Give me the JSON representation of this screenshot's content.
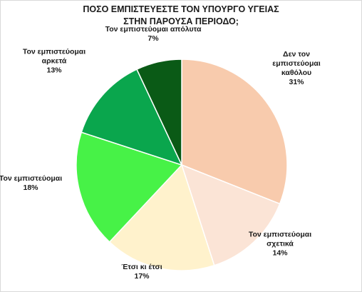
{
  "chart_data": {
    "type": "pie",
    "title_line1": "ΠΟΣΟ ΕΜΠΙΣΤΕΥΕΣΤΕ ΤΟΝ ΥΠΟΥΡΓΟ ΥΓΕΙΑΣ",
    "title_line2": "ΣΤΗΝ ΠΑΡΟΥΣΑ ΠΕΡΙΟΔΟ;",
    "slices": [
      {
        "label": "Δεν τον\nεμπιστεύομαι\nκαθόλου",
        "value": 31,
        "pct_label": "31%",
        "color": "#f8cbad"
      },
      {
        "label": "Τον εμπιστεύομαι\nσχετικά",
        "value": 14,
        "pct_label": "14%",
        "color": "#fbe4d6"
      },
      {
        "label": "Έτσι κι έτσι",
        "value": 17,
        "pct_label": "17%",
        "color": "#fff2cc"
      },
      {
        "label": "Τον εμπιστεύομαι",
        "value": 18,
        "pct_label": "18%",
        "color": "#47f247"
      },
      {
        "label": "Τον εμπιστεύομαι\nαρκετά",
        "value": 13,
        "pct_label": "13%",
        "color": "#0aa64d"
      },
      {
        "label": "Τον εμπιστεύομαι απόλυτα",
        "value": 7,
        "pct_label": "7%",
        "color": "#0a5a16"
      }
    ],
    "legend": "none"
  }
}
